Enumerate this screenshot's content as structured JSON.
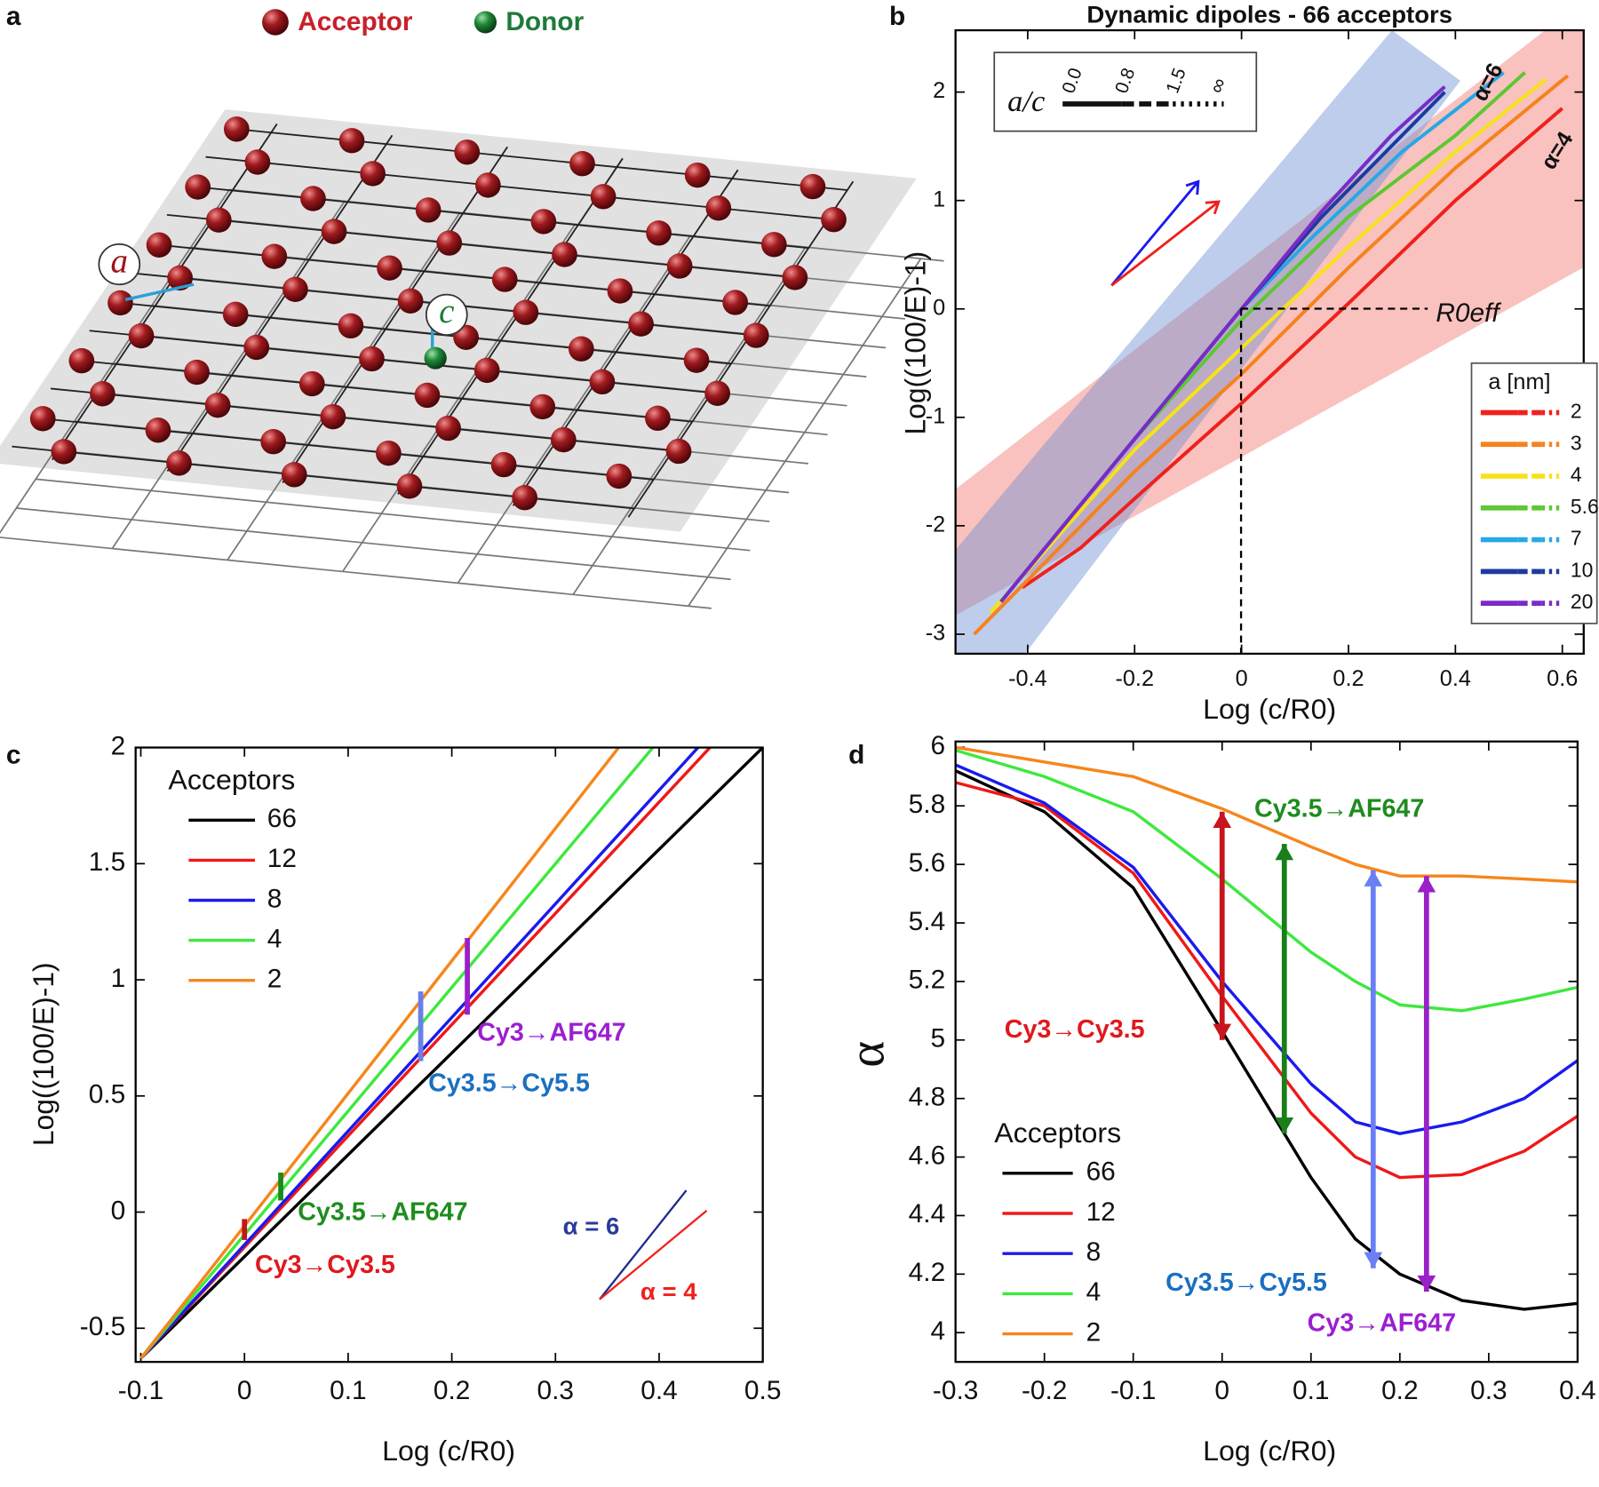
{
  "panel_labels": [
    "a",
    "b",
    "c",
    "d"
  ],
  "diagram": {
    "legend": [
      "Acceptor",
      "Donor"
    ],
    "labels": [
      "a",
      "c"
    ]
  },
  "chart_data": [
    {
      "type": "line",
      "title": "Dynamic dipoles - 66 acceptors",
      "x_label": "Log (c/R0)",
      "y_label": "Log((100/E)-1)",
      "xlim": [
        -0.535,
        0.64
      ],
      "ylim": [
        -3.18,
        2.57
      ],
      "xticks": [
        -0.4,
        -0.2,
        0,
        0.2,
        0.4,
        0.6
      ],
      "yticks": [
        -3,
        -2,
        -1,
        0,
        1,
        2
      ],
      "legend_title": "a [nm]",
      "style_legend": {
        "title": "a/c",
        "labels": [
          "0.0",
          "0.8",
          "1.5",
          "∞"
        ]
      },
      "annotations": [
        "α=6",
        "α=4",
        "R0eff"
      ],
      "series": [
        {
          "name": "2",
          "color": "#f0201c",
          "x": [
            -0.41,
            -0.3,
            -0.2,
            0,
            0.2,
            0.4,
            0.6
          ],
          "values": [
            -2.57,
            -2.2,
            -1.75,
            -0.87,
            0.05,
            1.0,
            1.85
          ]
        },
        {
          "name": "3",
          "color": "#f5821f",
          "x": [
            -0.5,
            -0.3,
            -0.2,
            0,
            0.2,
            0.4,
            0.61
          ],
          "values": [
            -3.0,
            -2.0,
            -1.5,
            -0.6,
            0.38,
            1.3,
            2.15
          ]
        },
        {
          "name": "4",
          "color": "#f7e21a",
          "x": [
            -0.47,
            -0.2,
            0,
            0.2,
            0.4,
            0.57
          ],
          "values": [
            -2.8,
            -1.3,
            -0.36,
            0.57,
            1.45,
            2.12
          ]
        },
        {
          "name": "5.6",
          "color": "#5cc832",
          "x": [
            -0.45,
            -0.2,
            0,
            0.2,
            0.4,
            0.53
          ],
          "values": [
            -2.7,
            -1.2,
            -0.1,
            0.85,
            1.6,
            2.18
          ]
        },
        {
          "name": "7",
          "color": "#27a8e6",
          "x": [
            -0.45,
            -0.2,
            0,
            0.13,
            0.3,
            0.49
          ],
          "values": [
            -2.7,
            -1.2,
            0,
            0.65,
            1.45,
            2.18
          ]
        },
        {
          "name": "10",
          "color": "#1f3a9e",
          "x": [
            -0.45,
            -0.2,
            0,
            0.15,
            0.3,
            0.38
          ],
          "values": [
            -2.7,
            -1.2,
            0,
            0.85,
            1.6,
            2.0
          ]
        },
        {
          "name": "20",
          "color": "#7a2bc8",
          "x": [
            -0.45,
            -0.2,
            0,
            0.15,
            0.28,
            0.38
          ],
          "values": [
            -2.7,
            -1.2,
            0,
            0.9,
            1.6,
            2.05
          ]
        }
      ]
    },
    {
      "type": "line",
      "x_label": "Log (c/R0)",
      "y_label": "Log((100/E)-1)",
      "xlim": [
        -0.105,
        0.5
      ],
      "ylim": [
        -0.645,
        2
      ],
      "xticks": [
        -0.1,
        0,
        0.1,
        0.2,
        0.3,
        0.4,
        0.5
      ],
      "yticks": [
        -0.5,
        0,
        0.5,
        1,
        1.5,
        2
      ],
      "legend_title": "Acceptors",
      "annotations": [
        "α = 6",
        "α = 4"
      ],
      "series": [
        {
          "name": "66",
          "color": "#000000",
          "x": [
            -0.1,
            0.5
          ],
          "values": [
            -0.63,
            2
          ]
        },
        {
          "name": "12",
          "color": "#f01818",
          "x": [
            -0.1,
            0.449
          ],
          "values": [
            -0.63,
            2
          ]
        },
        {
          "name": "8",
          "color": "#1a1aee",
          "x": [
            -0.1,
            0.4375
          ],
          "values": [
            -0.63,
            2
          ]
        },
        {
          "name": "4",
          "color": "#3ee83e",
          "x": [
            -0.1,
            0.394
          ],
          "values": [
            -0.63,
            2
          ]
        },
        {
          "name": "2",
          "color": "#f5861c",
          "x": [
            -0.1,
            0.361
          ],
          "values": [
            -0.63,
            2
          ]
        }
      ],
      "markers": [
        {
          "label": "Cy3→Cy3.5",
          "color": "#c0171b",
          "label_color": "#e0181e",
          "x": 0,
          "range": [
            -0.12,
            -0.03
          ]
        },
        {
          "label": "Cy3.5→AF647",
          "color": "#1a8a1a",
          "label_color": "#1e8c1e",
          "x": 0.035,
          "range": [
            0.05,
            0.17
          ]
        },
        {
          "label": "Cy3.5→Cy5.5",
          "color": "#6a7fe8",
          "label_color": "#1a6fc0",
          "x": 0.17,
          "range": [
            0.65,
            0.95
          ]
        },
        {
          "label": "Cy3→AF647",
          "color": "#9a20c8",
          "label_color": "#9b1fd0",
          "x": 0.215,
          "range": [
            0.85,
            1.18
          ]
        }
      ]
    },
    {
      "type": "line",
      "x_label": "Log (c/R0)",
      "y_label": "α",
      "xlim": [
        -0.3,
        0.4
      ],
      "ylim": [
        3.9,
        6.02
      ],
      "xticks": [
        -0.3,
        -0.2,
        -0.1,
        0,
        0.1,
        0.2,
        0.3,
        0.4
      ],
      "yticks": [
        4,
        4.2,
        4.4,
        4.6,
        4.8,
        5,
        5.2,
        5.4,
        5.6,
        5.8,
        6
      ],
      "legend_title": "Acceptors",
      "x": [
        -0.3,
        -0.2,
        -0.1,
        0,
        0.1,
        0.15,
        0.2,
        0.27,
        0.34,
        0.4
      ],
      "series": [
        {
          "name": "66",
          "color": "#000000",
          "values": [
            5.92,
            5.78,
            5.52,
            5.03,
            4.53,
            4.32,
            4.2,
            4.11,
            4.08,
            4.1
          ]
        },
        {
          "name": "12",
          "color": "#f01818",
          "values": [
            5.88,
            5.8,
            5.57,
            5.15,
            4.75,
            4.6,
            4.53,
            4.54,
            4.62,
            4.74
          ]
        },
        {
          "name": "8",
          "color": "#1a1aee",
          "values": [
            5.94,
            5.81,
            5.59,
            5.2,
            4.85,
            4.72,
            4.68,
            4.72,
            4.8,
            4.93
          ]
        },
        {
          "name": "4",
          "color": "#3ee83e",
          "values": [
            5.99,
            5.9,
            5.78,
            5.55,
            5.3,
            5.2,
            5.12,
            5.1,
            5.14,
            5.18
          ]
        },
        {
          "name": "2",
          "color": "#f5861c",
          "values": [
            6.0,
            5.95,
            5.9,
            5.79,
            5.66,
            5.6,
            5.56,
            5.56,
            5.55,
            5.54
          ]
        }
      ],
      "markers": [
        {
          "label": "Cy3→Cy3.5",
          "color": "#c8141c",
          "label_color": "#e0181e",
          "x": 0,
          "range": [
            5.0,
            5.78
          ]
        },
        {
          "label": "Cy3.5→AF647",
          "color": "#1a7e1a",
          "label_color": "#1e8c1e",
          "x": 0.07,
          "range": [
            4.68,
            5.67
          ]
        },
        {
          "label": "Cy3.5→Cy5.5",
          "color": "#6a7ff5",
          "label_color": "#1a6fc0",
          "x": 0.17,
          "range": [
            4.22,
            5.58
          ]
        },
        {
          "label": "Cy3→AF647",
          "color": "#9a20c8",
          "label_color": "#9b1fd0",
          "x": 0.23,
          "range": [
            4.14,
            5.56
          ]
        }
      ]
    }
  ]
}
